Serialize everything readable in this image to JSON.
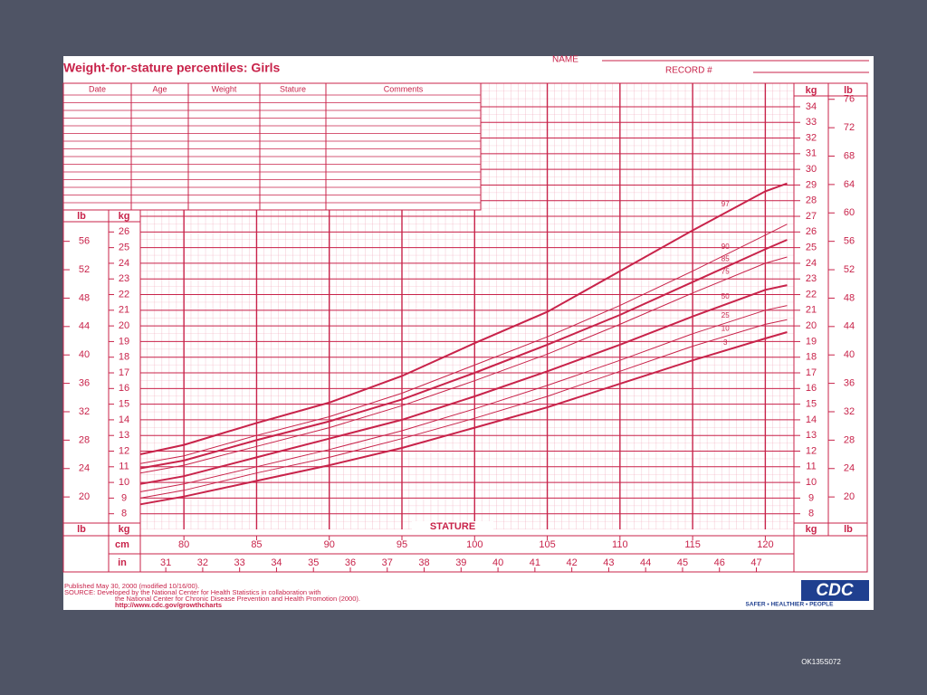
{
  "header": {
    "name_label": "NAME",
    "record_label": "RECORD #"
  },
  "record_table": {
    "columns": [
      "Date",
      "Age",
      "Weight",
      "Stature",
      "Comments"
    ]
  },
  "chart_data": {
    "type": "line",
    "title": "Weight-for-stature percentiles: Girls",
    "x_label": "STATURE",
    "x_unit_label": "cm",
    "x2_unit_label": "in",
    "y_unit_label": "kg",
    "y2_unit_label": "lb",
    "x": [
      77,
      80,
      85,
      90,
      95,
      100,
      105,
      110,
      115,
      120,
      121.5
    ],
    "series": [
      {
        "name": "97",
        "line_width": 2,
        "values": [
          11.8,
          12.4,
          13.8,
          15.1,
          16.8,
          18.9,
          20.9,
          23.5,
          26.1,
          28.6,
          29.1
        ]
      },
      {
        "name": "90",
        "line_width": 1,
        "values": [
          11.2,
          11.7,
          13.0,
          14.2,
          15.7,
          17.5,
          19.3,
          21.3,
          23.5,
          25.8,
          26.5
        ]
      },
      {
        "name": "85",
        "line_width": 2,
        "values": [
          10.9,
          11.4,
          12.7,
          13.9,
          15.3,
          17.0,
          18.8,
          20.7,
          22.8,
          24.9,
          25.5
        ]
      },
      {
        "name": "75",
        "line_width": 1,
        "values": [
          10.6,
          11.1,
          12.3,
          13.5,
          14.9,
          16.5,
          18.2,
          20.1,
          22.1,
          24.0,
          24.4
        ]
      },
      {
        "name": "50",
        "line_width": 2,
        "values": [
          9.9,
          10.4,
          11.6,
          12.8,
          14.0,
          15.5,
          17.1,
          18.8,
          20.6,
          22.3,
          22.6
        ]
      },
      {
        "name": "25",
        "line_width": 1,
        "values": [
          9.4,
          9.9,
          11.0,
          12.1,
          13.3,
          14.7,
          16.2,
          17.8,
          19.5,
          21.0,
          21.3
        ]
      },
      {
        "name": "10",
        "line_width": 1,
        "values": [
          9.0,
          9.5,
          10.6,
          11.6,
          12.8,
          14.1,
          15.5,
          17.1,
          18.7,
          20.1,
          20.4
        ]
      },
      {
        "name": "3",
        "line_width": 2,
        "values": [
          8.6,
          9.1,
          10.1,
          11.1,
          12.2,
          13.5,
          14.8,
          16.3,
          17.8,
          19.2,
          19.6
        ]
      }
    ],
    "color": "#c8234a",
    "grid": true,
    "xlim": [
      77,
      122
    ],
    "xticks": [
      80,
      85,
      90,
      95,
      100,
      105,
      110,
      115,
      120
    ],
    "x2lim": [
      30.31,
      48.03
    ],
    "x2ticks": [
      31,
      32,
      33,
      34,
      35,
      36,
      37,
      38,
      39,
      40,
      41,
      42,
      43,
      44,
      45,
      46,
      47
    ],
    "ylim": [
      7,
      35.5
    ],
    "yticks": [
      8,
      9,
      10,
      11,
      12,
      13,
      14,
      15,
      16,
      17,
      18,
      19,
      20,
      21,
      22,
      23,
      24,
      25,
      26,
      27,
      28,
      29,
      30,
      31,
      32,
      33,
      34
    ],
    "yticks_left": [
      8,
      9,
      10,
      11,
      12,
      13,
      14,
      15,
      16,
      17,
      18,
      19,
      20,
      21,
      22,
      23,
      24,
      25,
      26
    ],
    "y2lim": [
      15.43,
      78.26
    ],
    "y2ticks": [
      20,
      24,
      28,
      32,
      36,
      40,
      44,
      48,
      52,
      56,
      60,
      64,
      68,
      72,
      76
    ],
    "y2ticks_left": [
      20,
      24,
      28,
      32,
      36,
      40,
      44,
      48,
      52,
      56
    ]
  },
  "footer": {
    "lines": [
      "Published May 30, 2000 (modified 10/16/00).",
      "SOURCE: Developed by the National Center for Health Statistics in collaboration with",
      "the National Center for Chronic Disease Prevention and Health Promotion (2000).",
      "http://www.cdc.gov/growthcharts"
    ]
  },
  "logo": {
    "text": "CDC",
    "tagline": "SAFER • HEALTHIER • PEOPLE"
  },
  "slide_code": "OK135S072"
}
